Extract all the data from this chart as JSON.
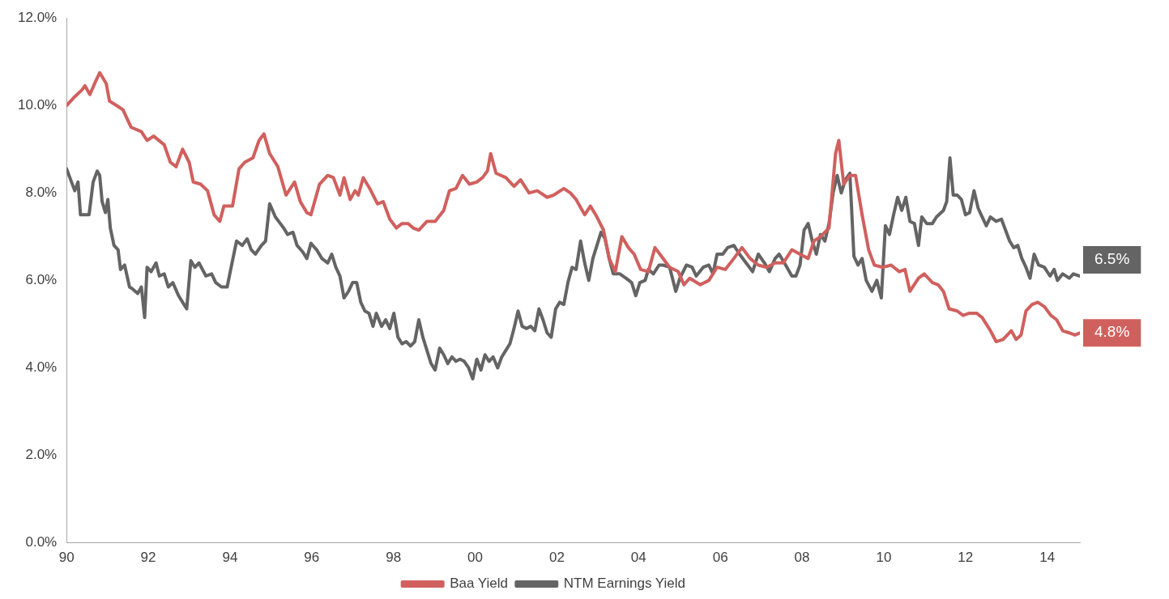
{
  "chart_data": {
    "type": "line",
    "xlim": [
      1990,
      2014.8
    ],
    "ylim": [
      0,
      12
    ],
    "xticks": [
      {
        "value": 1990,
        "label": "90"
      },
      {
        "value": 1992,
        "label": "92"
      },
      {
        "value": 1994,
        "label": "94"
      },
      {
        "value": 1996,
        "label": "96"
      },
      {
        "value": 1998,
        "label": "98"
      },
      {
        "value": 2000,
        "label": "00"
      },
      {
        "value": 2002,
        "label": "02"
      },
      {
        "value": 2004,
        "label": "04"
      },
      {
        "value": 2006,
        "label": "06"
      },
      {
        "value": 2008,
        "label": "08"
      },
      {
        "value": 2010,
        "label": "10"
      },
      {
        "value": 2012,
        "label": "12"
      },
      {
        "value": 2014,
        "label": "14"
      }
    ],
    "yticks": [
      {
        "value": 0,
        "label": "0.0%"
      },
      {
        "value": 2,
        "label": "2.0%"
      },
      {
        "value": 4,
        "label": "4.0%"
      },
      {
        "value": 6,
        "label": "6.0%"
      },
      {
        "value": 8,
        "label": "8.0%"
      },
      {
        "value": 10,
        "label": "10.0%"
      },
      {
        "value": 12,
        "label": "12.0%"
      }
    ],
    "grid": false,
    "legend": "bottom",
    "marker": "none",
    "line_style": "solid",
    "annotations": [
      "4.8%",
      "6.5%"
    ],
    "series": [
      {
        "name": "Baa Yield",
        "color": "#d0605e",
        "x": [
          1990.0,
          1990.2,
          1990.37,
          1990.45,
          1990.57,
          1990.71,
          1990.81,
          1990.97,
          1991.05,
          1991.22,
          1991.38,
          1991.58,
          1991.83,
          1991.97,
          1992.13,
          1992.39,
          1992.54,
          1992.68,
          1992.84,
          1993.0,
          1993.1,
          1993.28,
          1993.45,
          1993.61,
          1993.75,
          1993.85,
          1994.06,
          1994.22,
          1994.36,
          1994.56,
          1994.71,
          1994.83,
          1994.97,
          1995.17,
          1995.37,
          1995.58,
          1995.72,
          1995.88,
          1995.98,
          1996.19,
          1996.39,
          1996.53,
          1996.69,
          1996.79,
          1996.94,
          1997.06,
          1997.14,
          1997.26,
          1997.42,
          1997.61,
          1997.75,
          1997.91,
          1998.07,
          1998.21,
          1998.36,
          1998.48,
          1998.62,
          1998.82,
          1999.02,
          1999.23,
          1999.37,
          1999.53,
          1999.69,
          1999.86,
          2000.04,
          2000.18,
          2000.3,
          2000.38,
          2000.51,
          2000.75,
          2000.95,
          2001.11,
          2001.32,
          2001.52,
          2001.76,
          2001.92,
          2002.17,
          2002.33,
          2002.47,
          2002.68,
          2002.82,
          2002.98,
          2003.14,
          2003.28,
          2003.43,
          2003.59,
          2003.75,
          2003.89,
          2004.05,
          2004.24,
          2004.4,
          2004.56,
          2004.76,
          2004.97,
          2005.11,
          2005.25,
          2005.51,
          2005.72,
          2005.92,
          2006.12,
          2006.33,
          2006.53,
          2006.73,
          2006.93,
          2007.14,
          2007.34,
          2007.54,
          2007.75,
          2007.95,
          2008.15,
          2008.29,
          2008.45,
          2008.66,
          2008.82,
          2008.9,
          2009.02,
          2009.17,
          2009.31,
          2009.47,
          2009.63,
          2009.77,
          2009.98,
          2010.18,
          2010.38,
          2010.52,
          2010.64,
          2010.85,
          2010.99,
          2011.19,
          2011.33,
          2011.46,
          2011.6,
          2011.8,
          2011.94,
          2012.1,
          2012.27,
          2012.41,
          2012.61,
          2012.75,
          2012.92,
          2013.12,
          2013.24,
          2013.36,
          2013.48,
          2013.63,
          2013.77,
          2013.93,
          2014.09,
          2014.23,
          2014.38,
          2014.54,
          2014.68,
          2014.8
        ],
        "values": [
          10.0,
          10.2,
          10.35,
          10.45,
          10.25,
          10.55,
          10.75,
          10.5,
          10.1,
          10.0,
          9.9,
          9.5,
          9.4,
          9.2,
          9.3,
          9.1,
          8.7,
          8.6,
          9.0,
          8.7,
          8.25,
          8.2,
          8.05,
          7.5,
          7.35,
          7.7,
          7.7,
          8.55,
          8.7,
          8.8,
          9.2,
          9.35,
          8.9,
          8.6,
          7.95,
          8.25,
          7.8,
          7.55,
          7.5,
          8.2,
          8.4,
          8.35,
          7.95,
          8.35,
          7.85,
          8.05,
          7.95,
          8.35,
          8.1,
          7.75,
          7.8,
          7.4,
          7.2,
          7.3,
          7.3,
          7.2,
          7.15,
          7.35,
          7.35,
          7.6,
          8.05,
          8.1,
          8.4,
          8.2,
          8.25,
          8.35,
          8.5,
          8.9,
          8.45,
          8.35,
          8.15,
          8.3,
          8.0,
          8.05,
          7.9,
          7.95,
          8.1,
          8.0,
          7.85,
          7.5,
          7.7,
          7.45,
          7.15,
          6.5,
          6.2,
          7.0,
          6.75,
          6.6,
          6.25,
          6.2,
          6.75,
          6.55,
          6.3,
          6.2,
          5.9,
          6.05,
          5.9,
          6.0,
          6.3,
          6.25,
          6.5,
          6.75,
          6.5,
          6.35,
          6.3,
          6.4,
          6.4,
          6.7,
          6.6,
          6.5,
          6.9,
          7.0,
          7.2,
          8.9,
          9.2,
          8.2,
          8.4,
          8.4,
          7.5,
          6.7,
          6.35,
          6.3,
          6.35,
          6.2,
          6.25,
          5.75,
          6.05,
          6.15,
          5.95,
          5.9,
          5.75,
          5.35,
          5.3,
          5.2,
          5.25,
          5.25,
          5.15,
          4.85,
          4.6,
          4.65,
          4.85,
          4.65,
          4.75,
          5.3,
          5.45,
          5.5,
          5.4,
          5.2,
          5.1,
          4.85,
          4.8,
          4.75,
          4.8
        ]
      },
      {
        "name": "NTM Earnings Yield",
        "color": "#646464",
        "x": [
          1990.0,
          1990.1,
          1990.2,
          1990.28,
          1990.34,
          1990.47,
          1990.55,
          1990.65,
          1990.75,
          1990.81,
          1990.87,
          1990.95,
          1991.01,
          1991.07,
          1991.16,
          1991.26,
          1991.32,
          1991.42,
          1991.54,
          1991.62,
          1991.74,
          1991.83,
          1991.91,
          1991.97,
          1992.07,
          1992.19,
          1992.27,
          1992.39,
          1992.49,
          1992.6,
          1992.74,
          1992.84,
          1992.94,
          1993.04,
          1993.14,
          1993.24,
          1993.41,
          1993.55,
          1993.65,
          1993.79,
          1993.93,
          1994.06,
          1994.16,
          1994.3,
          1994.42,
          1994.52,
          1994.62,
          1994.77,
          1994.87,
          1994.97,
          1995.11,
          1995.23,
          1995.31,
          1995.41,
          1995.54,
          1995.64,
          1995.78,
          1995.88,
          1995.98,
          1996.12,
          1996.25,
          1996.39,
          1996.49,
          1996.59,
          1996.69,
          1996.79,
          1996.9,
          1997.0,
          1997.1,
          1997.2,
          1997.3,
          1997.4,
          1997.5,
          1997.58,
          1997.71,
          1997.81,
          1997.91,
          1998.01,
          1998.11,
          1998.21,
          1998.31,
          1998.42,
          1998.52,
          1998.62,
          1998.72,
          1998.82,
          1998.92,
          1999.02,
          1999.13,
          1999.23,
          1999.33,
          1999.43,
          1999.53,
          1999.63,
          1999.73,
          1999.84,
          1999.94,
          2000.04,
          2000.14,
          2000.24,
          2000.34,
          2000.44,
          2000.55,
          2000.65,
          2000.75,
          2000.85,
          2000.95,
          2001.05,
          2001.15,
          2001.26,
          2001.36,
          2001.46,
          2001.56,
          2001.66,
          2001.76,
          2001.86,
          2001.97,
          2002.07,
          2002.17,
          2002.27,
          2002.37,
          2002.47,
          2002.58,
          2002.68,
          2002.78,
          2002.88,
          2002.98,
          2003.08,
          2003.18,
          2003.28,
          2003.38,
          2003.54,
          2003.69,
          2003.83,
          2003.93,
          2004.03,
          2004.16,
          2004.24,
          2004.36,
          2004.5,
          2004.6,
          2004.76,
          2004.91,
          2005.01,
          2005.17,
          2005.31,
          2005.41,
          2005.58,
          2005.72,
          2005.82,
          2005.92,
          2006.06,
          2006.18,
          2006.33,
          2006.47,
          2006.63,
          2006.79,
          2006.93,
          2007.08,
          2007.2,
          2007.34,
          2007.44,
          2007.6,
          2007.75,
          2007.85,
          2007.95,
          2008.05,
          2008.15,
          2008.25,
          2008.35,
          2008.45,
          2008.56,
          2008.66,
          2008.76,
          2008.86,
          2008.96,
          2009.06,
          2009.17,
          2009.27,
          2009.37,
          2009.47,
          2009.57,
          2009.71,
          2009.83,
          2009.94,
          2010.04,
          2010.14,
          2010.24,
          2010.34,
          2010.44,
          2010.54,
          2010.64,
          2010.75,
          2010.85,
          2010.93,
          2011.05,
          2011.19,
          2011.29,
          2011.46,
          2011.54,
          2011.62,
          2011.7,
          2011.8,
          2011.9,
          2012.0,
          2012.1,
          2012.21,
          2012.31,
          2012.41,
          2012.51,
          2012.61,
          2012.75,
          2012.88,
          2012.98,
          2013.08,
          2013.18,
          2013.28,
          2013.38,
          2013.48,
          2013.58,
          2013.68,
          2013.79,
          2013.93,
          2014.07,
          2014.17,
          2014.25,
          2014.38,
          2014.54,
          2014.64,
          2014.8
        ],
        "values": [
          8.55,
          8.3,
          8.05,
          8.25,
          7.5,
          7.5,
          7.5,
          8.25,
          8.5,
          8.4,
          7.8,
          7.55,
          7.85,
          7.2,
          6.8,
          6.7,
          6.25,
          6.35,
          5.85,
          5.8,
          5.7,
          5.85,
          5.15,
          6.3,
          6.2,
          6.4,
          6.1,
          6.15,
          5.85,
          5.95,
          5.65,
          5.5,
          5.35,
          6.45,
          6.3,
          6.4,
          6.1,
          6.15,
          5.95,
          5.85,
          5.85,
          6.45,
          6.9,
          6.8,
          6.95,
          6.7,
          6.6,
          6.8,
          6.9,
          7.75,
          7.45,
          7.3,
          7.2,
          7.05,
          7.1,
          6.8,
          6.65,
          6.5,
          6.85,
          6.7,
          6.5,
          6.4,
          6.6,
          6.3,
          6.1,
          5.6,
          5.75,
          5.95,
          5.95,
          5.5,
          5.3,
          5.25,
          4.95,
          5.25,
          4.95,
          5.1,
          4.9,
          5.25,
          4.7,
          4.55,
          4.6,
          4.5,
          4.6,
          5.1,
          4.7,
          4.4,
          4.1,
          3.95,
          4.45,
          4.3,
          4.1,
          4.25,
          4.15,
          4.2,
          4.15,
          4.0,
          3.75,
          4.2,
          3.95,
          4.3,
          4.15,
          4.25,
          4.0,
          4.25,
          4.4,
          4.55,
          4.9,
          5.3,
          4.95,
          4.9,
          4.95,
          4.85,
          5.35,
          5.1,
          4.8,
          4.7,
          5.35,
          5.5,
          5.45,
          5.95,
          6.3,
          6.25,
          6.9,
          6.4,
          6.0,
          6.5,
          6.8,
          7.1,
          6.95,
          6.5,
          6.15,
          6.15,
          6.05,
          5.95,
          5.65,
          5.95,
          6.0,
          6.25,
          6.15,
          6.35,
          6.35,
          6.3,
          5.75,
          6.05,
          6.35,
          6.3,
          6.1,
          6.3,
          6.35,
          6.15,
          6.6,
          6.6,
          6.75,
          6.8,
          6.6,
          6.4,
          6.2,
          6.6,
          6.4,
          6.2,
          6.5,
          6.6,
          6.35,
          6.1,
          6.1,
          6.35,
          7.15,
          7.3,
          6.9,
          6.6,
          7.05,
          6.9,
          7.3,
          8.0,
          8.4,
          8.0,
          8.3,
          8.45,
          6.55,
          6.35,
          6.5,
          6.0,
          5.75,
          6.0,
          5.6,
          7.25,
          7.05,
          7.5,
          7.9,
          7.6,
          7.9,
          7.35,
          7.3,
          6.8,
          7.45,
          7.3,
          7.3,
          7.45,
          7.6,
          7.8,
          8.8,
          7.95,
          7.95,
          7.85,
          7.5,
          7.55,
          8.05,
          7.65,
          7.45,
          7.25,
          7.45,
          7.35,
          7.4,
          7.15,
          6.9,
          6.75,
          6.8,
          6.5,
          6.3,
          6.05,
          6.6,
          6.35,
          6.3,
          6.1,
          6.25,
          6.0,
          6.15,
          6.05,
          6.15,
          6.1
        ]
      }
    ]
  }
}
